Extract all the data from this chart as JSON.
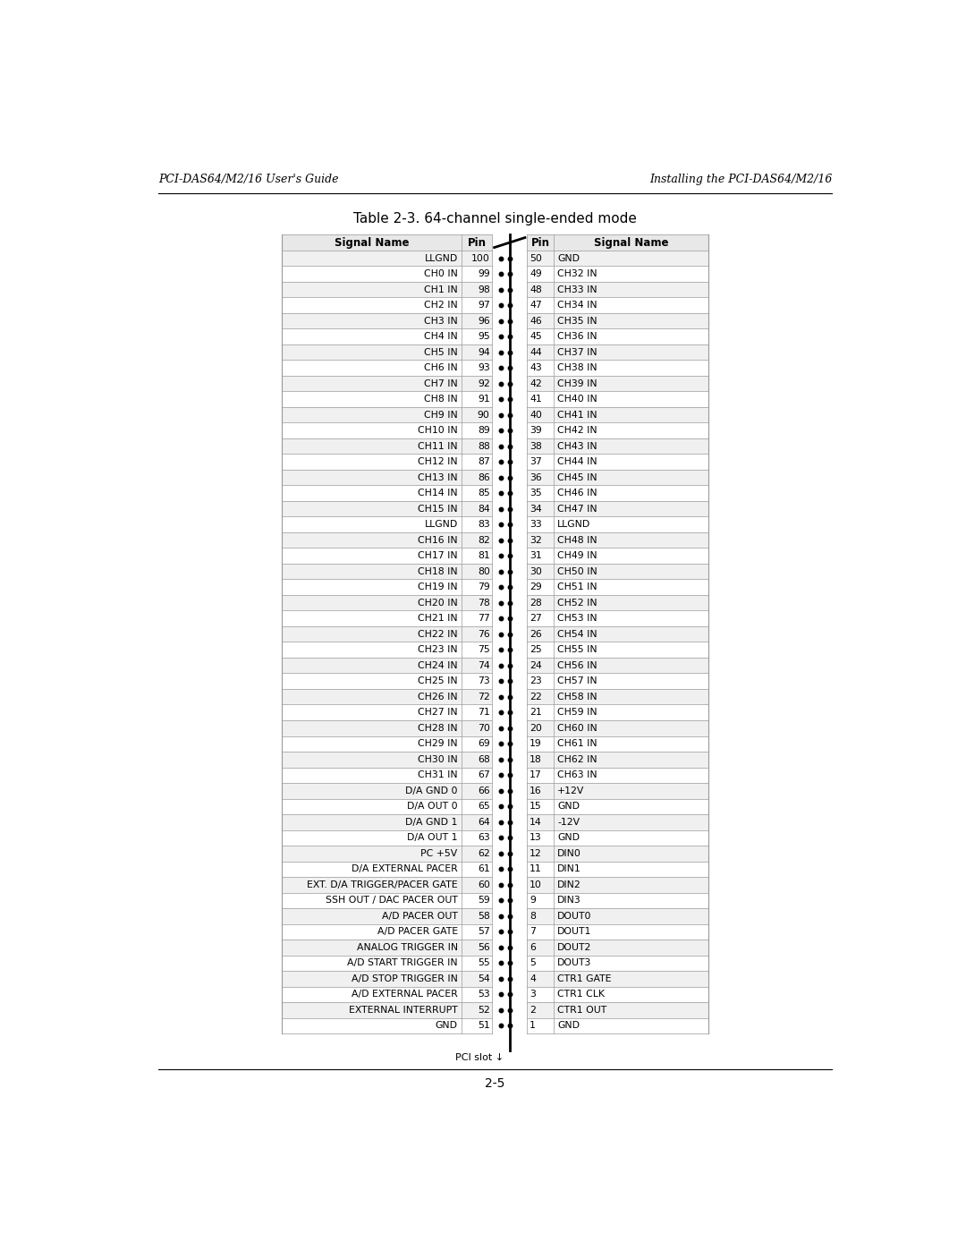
{
  "header_left": "PCI-DAS64/M2/16 User's Guide",
  "header_right": "Installing the PCI-DAS64/M2/16",
  "table_title": "Table 2-3. 64-channel single-ended mode",
  "col_headers": [
    "Signal Name",
    "Pin",
    "Pin",
    "Signal Name"
  ],
  "rows": [
    [
      "LLGND",
      "100",
      "50",
      "GND"
    ],
    [
      "CH0 IN",
      "99",
      "49",
      "CH32 IN"
    ],
    [
      "CH1 IN",
      "98",
      "48",
      "CH33 IN"
    ],
    [
      "CH2 IN",
      "97",
      "47",
      "CH34 IN"
    ],
    [
      "CH3 IN",
      "96",
      "46",
      "CH35 IN"
    ],
    [
      "CH4 IN",
      "95",
      "45",
      "CH36 IN"
    ],
    [
      "CH5 IN",
      "94",
      "44",
      "CH37 IN"
    ],
    [
      "CH6 IN",
      "93",
      "43",
      "CH38 IN"
    ],
    [
      "CH7 IN",
      "92",
      "42",
      "CH39 IN"
    ],
    [
      "CH8 IN",
      "91",
      "41",
      "CH40 IN"
    ],
    [
      "CH9 IN",
      "90",
      "40",
      "CH41 IN"
    ],
    [
      "CH10 IN",
      "89",
      "39",
      "CH42 IN"
    ],
    [
      "CH11 IN",
      "88",
      "38",
      "CH43 IN"
    ],
    [
      "CH12 IN",
      "87",
      "37",
      "CH44 IN"
    ],
    [
      "CH13 IN",
      "86",
      "36",
      "CH45 IN"
    ],
    [
      "CH14 IN",
      "85",
      "35",
      "CH46 IN"
    ],
    [
      "CH15 IN",
      "84",
      "34",
      "CH47 IN"
    ],
    [
      "LLGND",
      "83",
      "33",
      "LLGND"
    ],
    [
      "CH16 IN",
      "82",
      "32",
      "CH48 IN"
    ],
    [
      "CH17 IN",
      "81",
      "31",
      "CH49 IN"
    ],
    [
      "CH18 IN",
      "80",
      "30",
      "CH50 IN"
    ],
    [
      "CH19 IN",
      "79",
      "29",
      "CH51 IN"
    ],
    [
      "CH20 IN",
      "78",
      "28",
      "CH52 IN"
    ],
    [
      "CH21 IN",
      "77",
      "27",
      "CH53 IN"
    ],
    [
      "CH22 IN",
      "76",
      "26",
      "CH54 IN"
    ],
    [
      "CH23 IN",
      "75",
      "25",
      "CH55 IN"
    ],
    [
      "CH24 IN",
      "74",
      "24",
      "CH56 IN"
    ],
    [
      "CH25 IN",
      "73",
      "23",
      "CH57 IN"
    ],
    [
      "CH26 IN",
      "72",
      "22",
      "CH58 IN"
    ],
    [
      "CH27 IN",
      "71",
      "21",
      "CH59 IN"
    ],
    [
      "CH28 IN",
      "70",
      "20",
      "CH60 IN"
    ],
    [
      "CH29 IN",
      "69",
      "19",
      "CH61 IN"
    ],
    [
      "CH30 IN",
      "68",
      "18",
      "CH62 IN"
    ],
    [
      "CH31 IN",
      "67",
      "17",
      "CH63 IN"
    ],
    [
      "D/A GND 0",
      "66",
      "16",
      "+12V"
    ],
    [
      "D/A OUT 0",
      "65",
      "15",
      "GND"
    ],
    [
      "D/A GND 1",
      "64",
      "14",
      "-12V"
    ],
    [
      "D/A OUT 1",
      "63",
      "13",
      "GND"
    ],
    [
      "PC +5V",
      "62",
      "12",
      "DIN0"
    ],
    [
      "D/A EXTERNAL PACER",
      "61",
      "11",
      "DIN1"
    ],
    [
      "EXT. D/A TRIGGER/PACER GATE",
      "60",
      "10",
      "DIN2"
    ],
    [
      "SSH OUT / DAC PACER OUT",
      "59",
      "9",
      "DIN3"
    ],
    [
      "A/D PACER OUT",
      "58",
      "8",
      "DOUT0"
    ],
    [
      "A/D PACER GATE",
      "57",
      "7",
      "DOUT1"
    ],
    [
      "ANALOG TRIGGER IN",
      "56",
      "6",
      "DOUT2"
    ],
    [
      "A/D START TRIGGER IN",
      "55",
      "5",
      "DOUT3"
    ],
    [
      "A/D STOP TRIGGER IN",
      "54",
      "4",
      "CTR1 GATE"
    ],
    [
      "A/D EXTERNAL PACER",
      "53",
      "3",
      "CTR1 CLK"
    ],
    [
      "EXTERNAL INTERRUPT",
      "52",
      "2",
      "CTR1 OUT"
    ],
    [
      "GND",
      "51",
      "1",
      "GND"
    ]
  ],
  "footer_text": "PCI slot",
  "page_number": "2-5",
  "bg_color_even": "#f0f0f0",
  "bg_color_odd": "#ffffff",
  "bg_header_row": "#e8e8e8"
}
